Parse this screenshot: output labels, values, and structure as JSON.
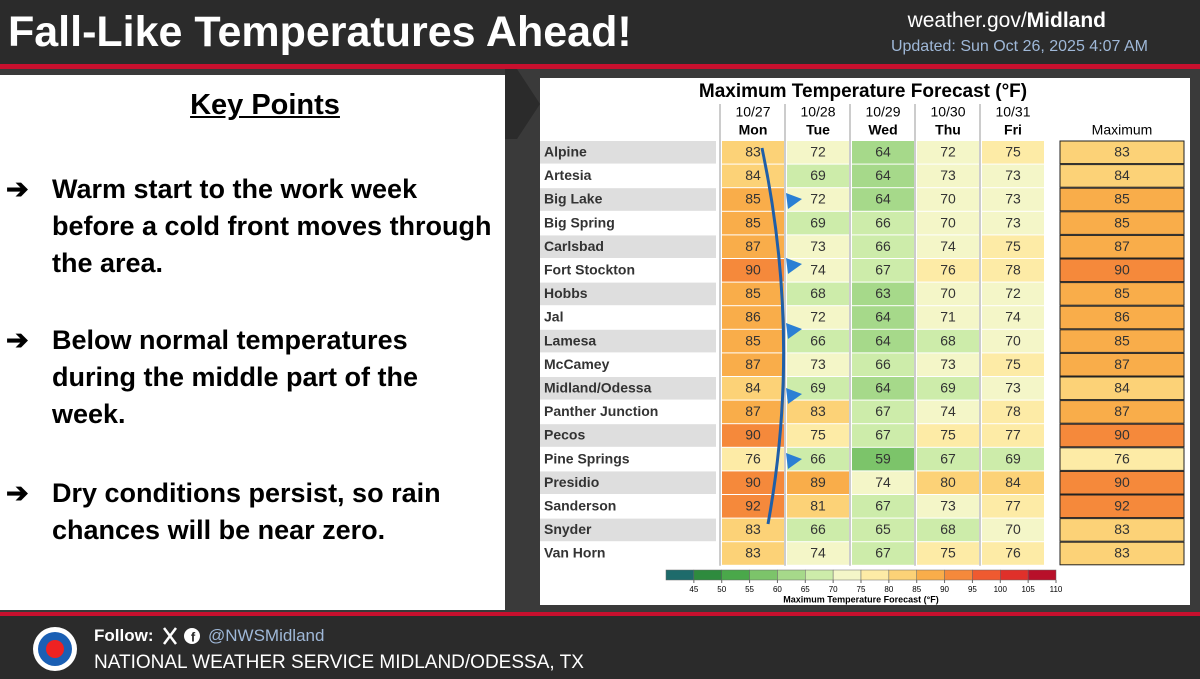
{
  "header": {
    "title": "Fall-Like Temperatures Ahead!",
    "site_prefix": "weather.gov/",
    "site_bold": "Midland",
    "updated": "Updated: Sun Oct 26, 2025 4:07 AM"
  },
  "key_points": {
    "heading": "Key Points",
    "bullets": [
      "Warm start to the work week before a cold front moves through the area.",
      "Below normal temperatures during the middle part of the week.",
      "Dry conditions persist, so rain chances will be near zero."
    ]
  },
  "table": {
    "title": "Maximum Temperature Forecast (°F)",
    "columns": [
      {
        "date": "10/27",
        "day": "Mon"
      },
      {
        "date": "10/28",
        "day": "Tue"
      },
      {
        "date": "10/29",
        "day": "Wed"
      },
      {
        "date": "10/30",
        "day": "Thu"
      },
      {
        "date": "10/31",
        "day": "Fri"
      }
    ],
    "max_header": "Maximum",
    "rows": [
      {
        "name": "Alpine",
        "values": [
          83,
          72,
          64,
          72,
          75
        ],
        "max": 83
      },
      {
        "name": "Artesia",
        "values": [
          84,
          69,
          64,
          73,
          73
        ],
        "max": 84
      },
      {
        "name": "Big Lake",
        "values": [
          85,
          72,
          64,
          70,
          73
        ],
        "max": 85
      },
      {
        "name": "Big Spring",
        "values": [
          85,
          69,
          66,
          70,
          73
        ],
        "max": 85
      },
      {
        "name": "Carlsbad",
        "values": [
          87,
          73,
          66,
          74,
          75
        ],
        "max": 87
      },
      {
        "name": "Fort Stockton",
        "values": [
          90,
          74,
          67,
          76,
          78
        ],
        "max": 90
      },
      {
        "name": "Hobbs",
        "values": [
          85,
          68,
          63,
          70,
          72
        ],
        "max": 85
      },
      {
        "name": "Jal",
        "values": [
          86,
          72,
          64,
          71,
          74
        ],
        "max": 86
      },
      {
        "name": "Lamesa",
        "values": [
          85,
          66,
          64,
          68,
          70
        ],
        "max": 85
      },
      {
        "name": "McCamey",
        "values": [
          87,
          73,
          66,
          73,
          75
        ],
        "max": 87
      },
      {
        "name": "Midland/Odessa",
        "values": [
          84,
          69,
          64,
          69,
          73
        ],
        "max": 84
      },
      {
        "name": "Panther Junction",
        "values": [
          87,
          83,
          67,
          74,
          78
        ],
        "max": 87
      },
      {
        "name": "Pecos",
        "values": [
          90,
          75,
          67,
          75,
          77
        ],
        "max": 90
      },
      {
        "name": "Pine Springs",
        "values": [
          76,
          66,
          59,
          67,
          69
        ],
        "max": 76
      },
      {
        "name": "Presidio",
        "values": [
          90,
          89,
          74,
          80,
          84
        ],
        "max": 90
      },
      {
        "name": "Sanderson",
        "values": [
          92,
          81,
          67,
          73,
          77
        ],
        "max": 92
      },
      {
        "name": "Snyder",
        "values": [
          83,
          66,
          65,
          68,
          70
        ],
        "max": 83
      },
      {
        "name": "Van Horn",
        "values": [
          83,
          74,
          67,
          75,
          76
        ],
        "max": 83
      }
    ],
    "legend": {
      "title": "Maximum Temperature Forecast (°F)",
      "lim": [
        40,
        110
      ],
      "ticks": [
        45,
        50,
        55,
        60,
        65,
        70,
        75,
        80,
        85,
        90,
        95,
        100,
        105,
        110
      ],
      "colors": [
        "#1e6b6b",
        "#2e8b3e",
        "#4aa84a",
        "#7cc46a",
        "#a6d98a",
        "#cdecaa",
        "#f4f6c8",
        "#fdeba6",
        "#fcd277",
        "#f9ad4a",
        "#f5893b",
        "#ef5a30",
        "#e0302a",
        "#b8102a"
      ]
    }
  },
  "footer": {
    "follow": "Follow:",
    "handle": "@NWSMidland",
    "office": "NATIONAL WEATHER SERVICE MIDLAND/ODESSA, TX"
  }
}
